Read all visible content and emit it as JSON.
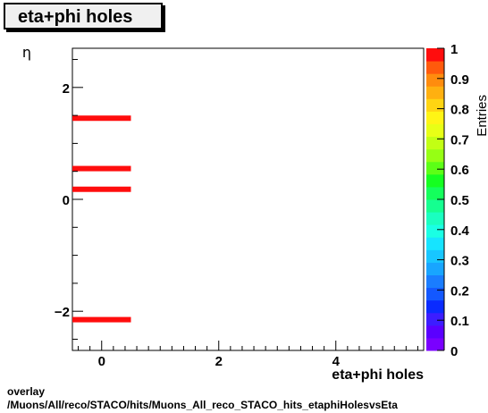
{
  "chart_data": {
    "type": "heatmap",
    "title": "eta+phi holes",
    "xlabel": "eta+phi holes",
    "ylabel": "η",
    "zlabel": "Entries",
    "xlim": [
      -0.5,
      5.5
    ],
    "ylim": [
      -2.7,
      2.7
    ],
    "zlim": [
      0,
      1
    ],
    "x_ticks": [
      0,
      2,
      4
    ],
    "y_ticks": [
      -2,
      0,
      2
    ],
    "z_ticks": [
      "0",
      "0.1",
      "0.2",
      "0.3",
      "0.4",
      "0.5",
      "0.6",
      "0.7",
      "0.8",
      "0.9",
      "1"
    ],
    "cells": [
      {
        "x": 0,
        "y": 1.45,
        "z": 1
      },
      {
        "x": 0,
        "y": 0.55,
        "z": 1
      },
      {
        "x": 0,
        "y": 0.18,
        "z": 1
      },
      {
        "x": 0,
        "y": -2.15,
        "z": 1
      }
    ]
  },
  "footer": {
    "line1": "overlay",
    "line2": "/Muons/All/reco/STACO/hits/Muons_All_reco_STACO_hits_etaphiHolesvsEta"
  },
  "colors": {
    "cell": "#ff0d0d",
    "palette": [
      "#7a00ff",
      "#5a00ff",
      "#3c1dff",
      "#0a2bff",
      "#1358ff",
      "#1a7dff",
      "#18a5ff",
      "#18c6ff",
      "#16e4ff",
      "#1affe4",
      "#1affc0",
      "#15ff90",
      "#14ff5c",
      "#15ff20",
      "#5cff16",
      "#96ff14",
      "#c2ff14",
      "#e8ff16",
      "#fff515",
      "#ffd512",
      "#ffb010",
      "#ff8c0e",
      "#ff5a0c",
      "#ff0d0d"
    ]
  }
}
